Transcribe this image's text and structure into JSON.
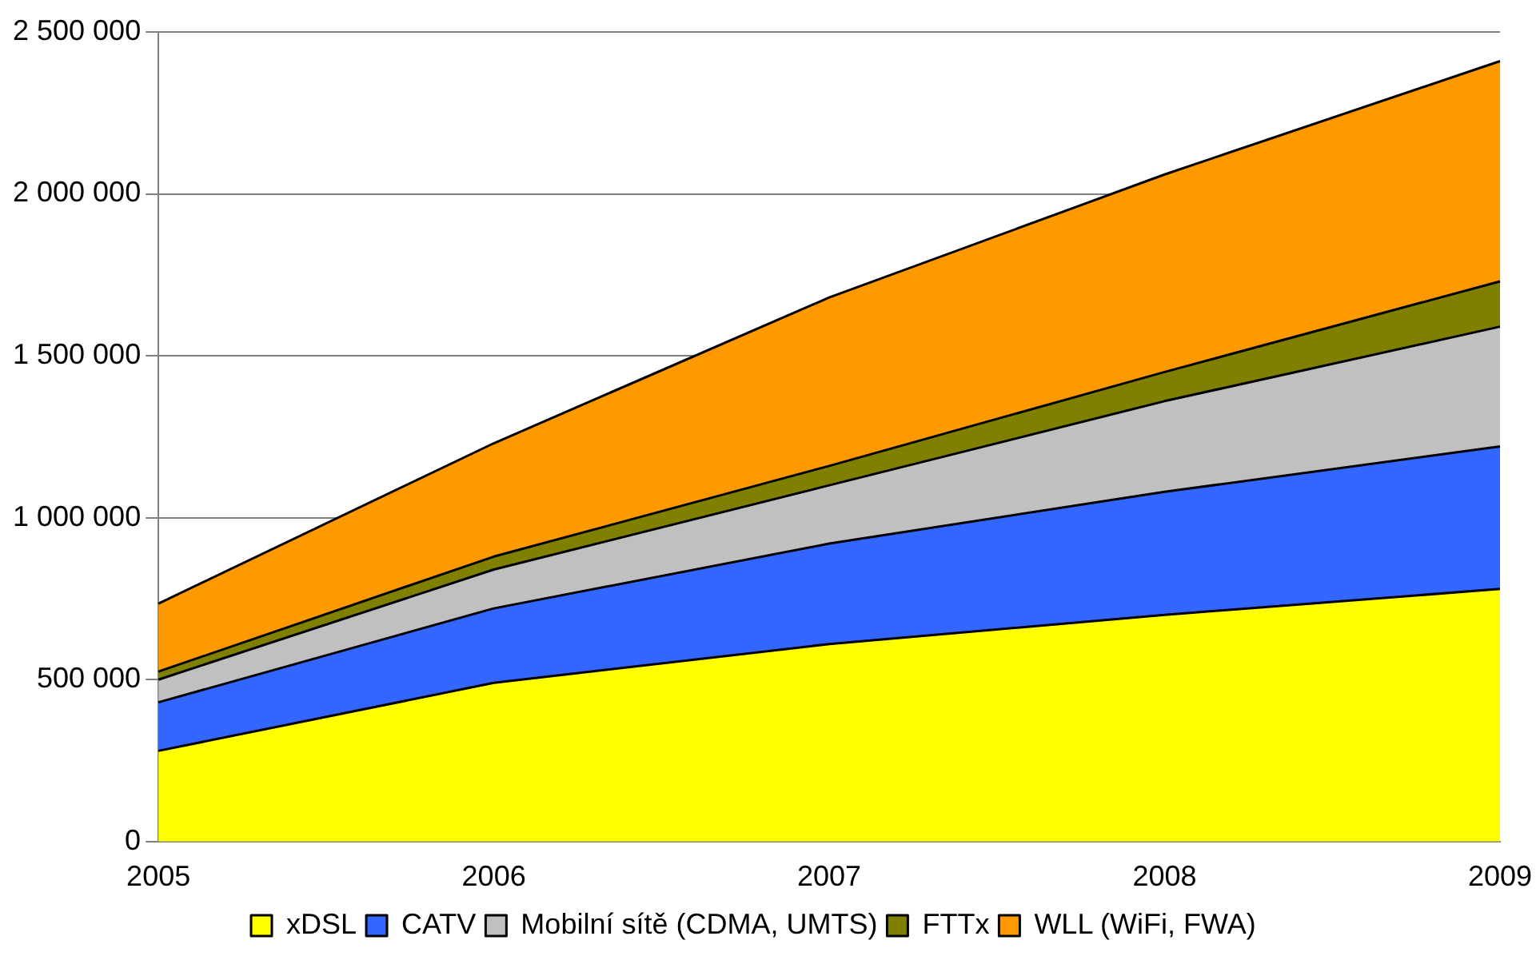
{
  "chart_data": {
    "type": "area",
    "stacked": true,
    "categories": [
      "2005",
      "2006",
      "2007",
      "2008",
      "2009"
    ],
    "series": [
      {
        "name": "xDSL",
        "color": "#ffff00",
        "values": [
          280000,
          490000,
          610000,
          700000,
          780000
        ]
      },
      {
        "name": "CATV",
        "color": "#3366ff",
        "values": [
          150000,
          230000,
          310000,
          380000,
          440000
        ]
      },
      {
        "name": "Mobilní sítě (CDMA, UMTS)",
        "color": "#c0c0c0",
        "values": [
          70000,
          120000,
          180000,
          280000,
          370000
        ]
      },
      {
        "name": "FTTx",
        "color": "#808000",
        "values": [
          25000,
          40000,
          60000,
          90000,
          140000
        ]
      },
      {
        "name": "WLL (WiFi, FWA)",
        "color": "#ff9900",
        "values": [
          210000,
          350000,
          520000,
          610000,
          680000
        ]
      }
    ],
    "ylim": [
      0,
      2500000
    ],
    "yticks": [
      0,
      {
        "value": 500000,
        "label": "500 000"
      },
      {
        "value": 1000000,
        "label": "1 000 000"
      },
      {
        "value": 1500000,
        "label": "1 500 000"
      },
      {
        "value": 2000000,
        "label": "2 000 000"
      },
      {
        "value": 2500000,
        "label": "2 500 000"
      }
    ],
    "grid": "y",
    "legend": "bottom",
    "marker": "none",
    "line_style": "solid"
  }
}
